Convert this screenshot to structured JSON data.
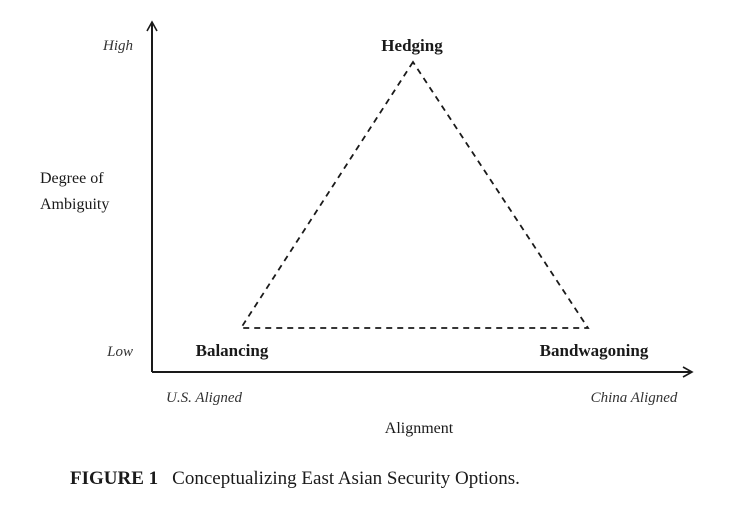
{
  "diagram": {
    "y_axis": {
      "title_line1": "Degree of",
      "title_line2": "Ambiguity",
      "high_label": "High",
      "low_label": "Low"
    },
    "x_axis": {
      "title": "Alignment",
      "left_label": "U.S. Aligned",
      "right_label": "China Aligned"
    },
    "vertices": {
      "top": "Hedging",
      "left": "Balancing",
      "right": "Bandwagoning"
    }
  },
  "caption": {
    "number": "FIGURE 1",
    "text": "Conceptualizing East Asian Security Options."
  }
}
